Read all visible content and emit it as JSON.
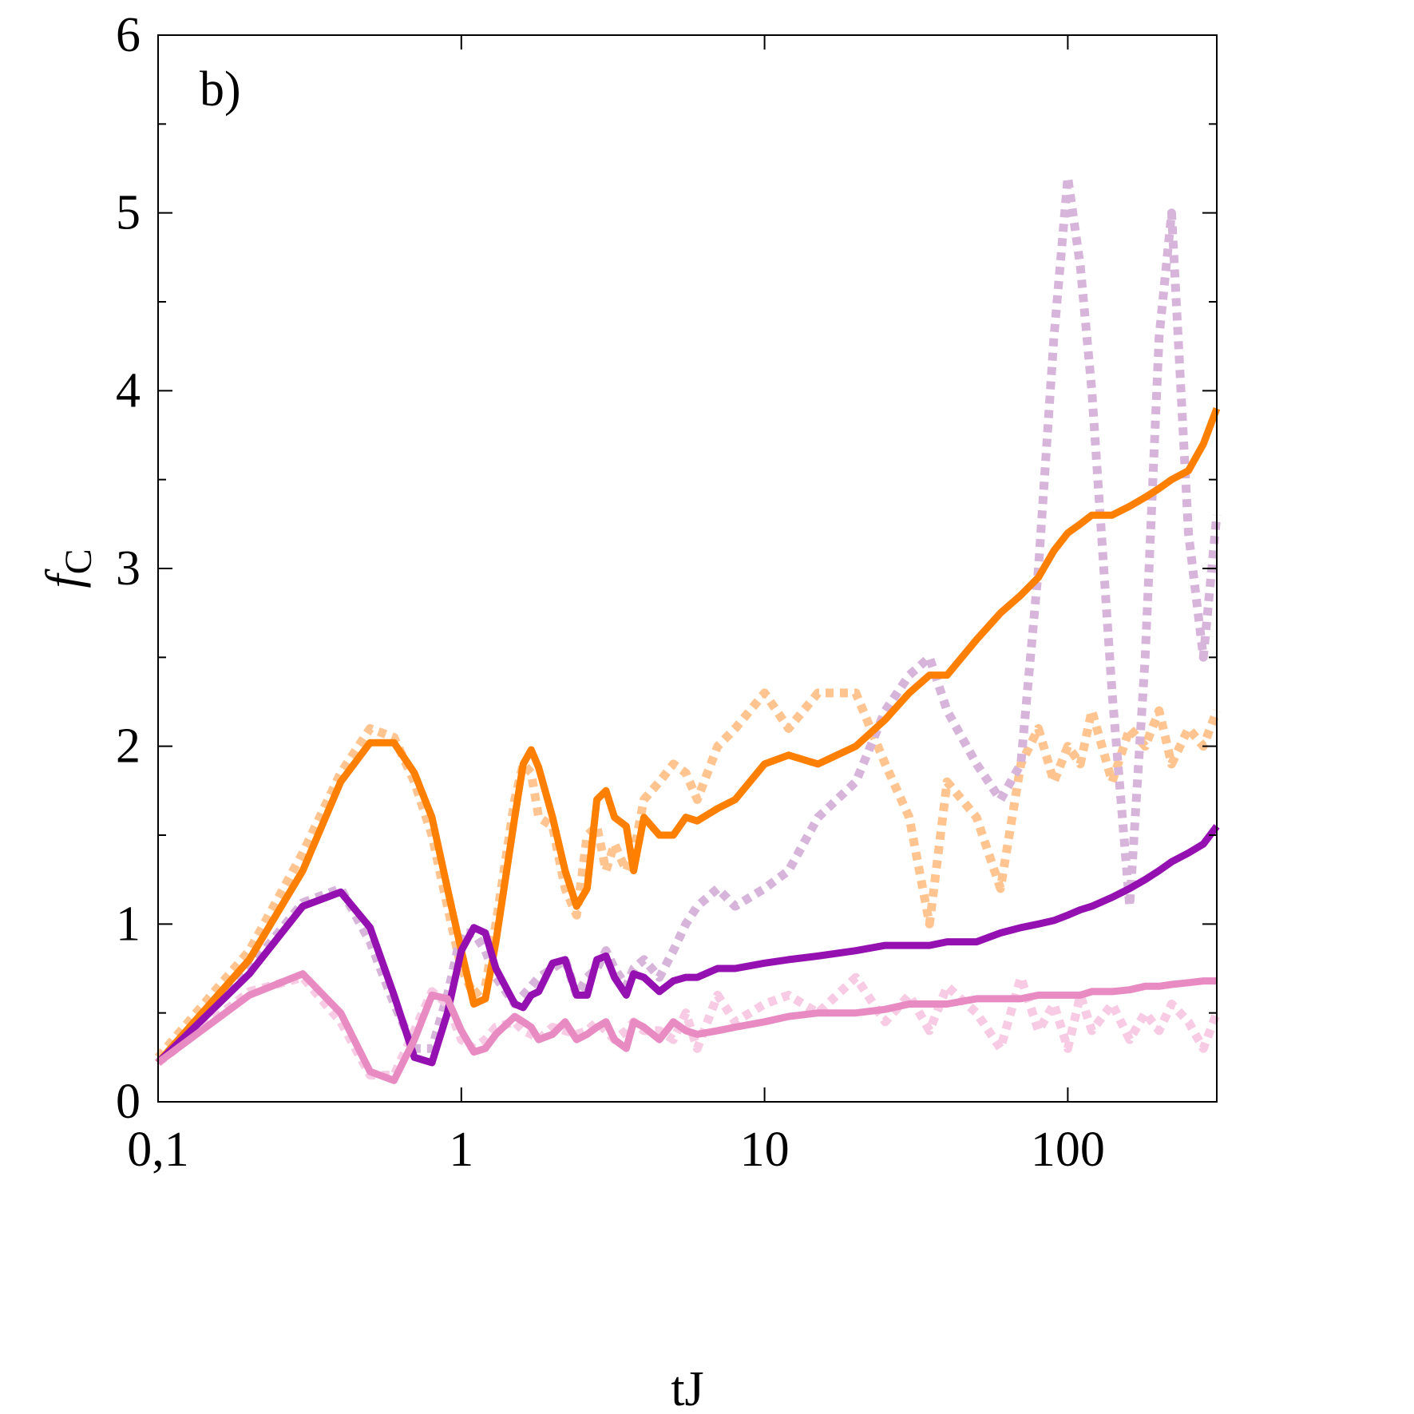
{
  "chart_data": {
    "type": "line",
    "annotation": "b)",
    "xlabel": "tJ",
    "ylabel": "f",
    "ylabel_subscript": "C",
    "xscale": "log",
    "xlim": [
      0.1,
      310
    ],
    "ylim": [
      0,
      6
    ],
    "xticks": [
      {
        "value": 0.1,
        "label": "0,1"
      },
      1,
      10,
      100
    ],
    "yticks": [
      0,
      1,
      2,
      3,
      4,
      5,
      6
    ],
    "yminorticks": [
      0.5,
      1.5,
      2.5,
      3.5,
      4.5,
      5.5
    ],
    "x": [
      0.1,
      0.2,
      0.3,
      0.4,
      0.5,
      0.6,
      0.7,
      0.8,
      0.9,
      1,
      1.1,
      1.2,
      1.3,
      1.5,
      1.6,
      1.7,
      1.8,
      2,
      2.2,
      2.4,
      2.6,
      2.8,
      3,
      3.2,
      3.5,
      3.7,
      4,
      4.5,
      5,
      5.5,
      6,
      7,
      8,
      10,
      12,
      15,
      20,
      25,
      30,
      35,
      40,
      50,
      60,
      70,
      80,
      90,
      100,
      110,
      120,
      140,
      160,
      180,
      200,
      220,
      250,
      280,
      310
    ],
    "series": [
      {
        "color": "#ffc48f",
        "style": "dotted",
        "values": [
          0.25,
          0.85,
          1.4,
          1.85,
          2.1,
          2.05,
          1.8,
          1.5,
          1.1,
          0.75,
          0.6,
          0.65,
          1.0,
          1.7,
          1.9,
          1.85,
          1.6,
          1.55,
          1.2,
          1.05,
          1.5,
          1.55,
          1.3,
          1.45,
          1.3,
          1.4,
          1.7,
          1.8,
          1.9,
          1.85,
          1.7,
          2.0,
          2.1,
          2.3,
          2.1,
          2.3,
          2.3,
          1.9,
          1.6,
          1.0,
          1.8,
          1.6,
          1.2,
          1.9,
          2.1,
          1.8,
          2.0,
          1.9,
          2.2,
          1.8,
          2.1,
          2.0,
          2.2,
          1.9,
          2.1,
          2.0,
          2.2
        ]
      },
      {
        "color": "#d7b5db",
        "style": "dotted",
        "values": [
          0.22,
          0.75,
          1.12,
          1.2,
          0.9,
          0.55,
          0.3,
          0.3,
          0.6,
          0.95,
          0.95,
          0.85,
          0.7,
          0.55,
          0.6,
          0.65,
          0.7,
          0.75,
          0.8,
          0.6,
          0.7,
          0.75,
          0.85,
          0.75,
          0.65,
          0.75,
          0.8,
          0.7,
          0.85,
          1.0,
          1.1,
          1.2,
          1.1,
          1.2,
          1.3,
          1.6,
          1.8,
          2.2,
          2.4,
          2.5,
          2.2,
          1.9,
          1.7,
          1.9,
          3.0,
          4.3,
          5.2,
          4.7,
          4.0,
          2.3,
          1.1,
          2.5,
          4.3,
          5.0,
          3.2,
          2.5,
          3.3
        ]
      },
      {
        "color": "#f6cbe3",
        "style": "dotted",
        "values": [
          0.22,
          0.62,
          0.7,
          0.45,
          0.15,
          0.15,
          0.4,
          0.62,
          0.55,
          0.35,
          0.3,
          0.35,
          0.42,
          0.45,
          0.4,
          0.38,
          0.35,
          0.42,
          0.4,
          0.38,
          0.4,
          0.45,
          0.4,
          0.35,
          0.4,
          0.45,
          0.4,
          0.4,
          0.35,
          0.5,
          0.3,
          0.6,
          0.45,
          0.55,
          0.6,
          0.5,
          0.7,
          0.45,
          0.6,
          0.4,
          0.65,
          0.5,
          0.3,
          0.7,
          0.4,
          0.55,
          0.3,
          0.6,
          0.4,
          0.55,
          0.35,
          0.5,
          0.4,
          0.55,
          0.45,
          0.3,
          0.5
        ]
      },
      {
        "color": "#ff7f00",
        "style": "solid",
        "values": [
          0.22,
          0.8,
          1.3,
          1.8,
          2.02,
          2.02,
          1.85,
          1.6,
          1.2,
          0.85,
          0.55,
          0.58,
          0.9,
          1.6,
          1.9,
          1.98,
          1.88,
          1.6,
          1.3,
          1.1,
          1.2,
          1.7,
          1.75,
          1.6,
          1.55,
          1.3,
          1.6,
          1.5,
          1.5,
          1.6,
          1.58,
          1.65,
          1.7,
          1.9,
          1.95,
          1.9,
          2.0,
          2.15,
          2.3,
          2.4,
          2.4,
          2.6,
          2.75,
          2.85,
          2.95,
          3.1,
          3.2,
          3.25,
          3.3,
          3.3,
          3.35,
          3.4,
          3.45,
          3.5,
          3.55,
          3.7,
          3.9
        ]
      },
      {
        "color": "#9510b0",
        "style": "solid",
        "values": [
          0.22,
          0.72,
          1.1,
          1.18,
          0.98,
          0.6,
          0.25,
          0.22,
          0.5,
          0.85,
          0.98,
          0.95,
          0.75,
          0.55,
          0.53,
          0.6,
          0.62,
          0.78,
          0.8,
          0.6,
          0.6,
          0.8,
          0.82,
          0.7,
          0.6,
          0.72,
          0.7,
          0.62,
          0.68,
          0.7,
          0.7,
          0.75,
          0.75,
          0.78,
          0.8,
          0.82,
          0.85,
          0.88,
          0.88,
          0.88,
          0.9,
          0.9,
          0.95,
          0.98,
          1.0,
          1.02,
          1.05,
          1.08,
          1.1,
          1.15,
          1.2,
          1.25,
          1.3,
          1.35,
          1.4,
          1.45,
          1.55
        ]
      },
      {
        "color": "#e88bc3",
        "style": "solid",
        "values": [
          0.22,
          0.6,
          0.72,
          0.5,
          0.17,
          0.12,
          0.35,
          0.6,
          0.58,
          0.4,
          0.28,
          0.3,
          0.38,
          0.48,
          0.45,
          0.42,
          0.35,
          0.38,
          0.45,
          0.35,
          0.38,
          0.42,
          0.45,
          0.35,
          0.3,
          0.45,
          0.42,
          0.35,
          0.45,
          0.4,
          0.38,
          0.4,
          0.42,
          0.45,
          0.48,
          0.5,
          0.5,
          0.52,
          0.55,
          0.55,
          0.55,
          0.58,
          0.58,
          0.58,
          0.6,
          0.6,
          0.6,
          0.6,
          0.62,
          0.62,
          0.63,
          0.65,
          0.65,
          0.66,
          0.67,
          0.68,
          0.68
        ]
      }
    ]
  }
}
